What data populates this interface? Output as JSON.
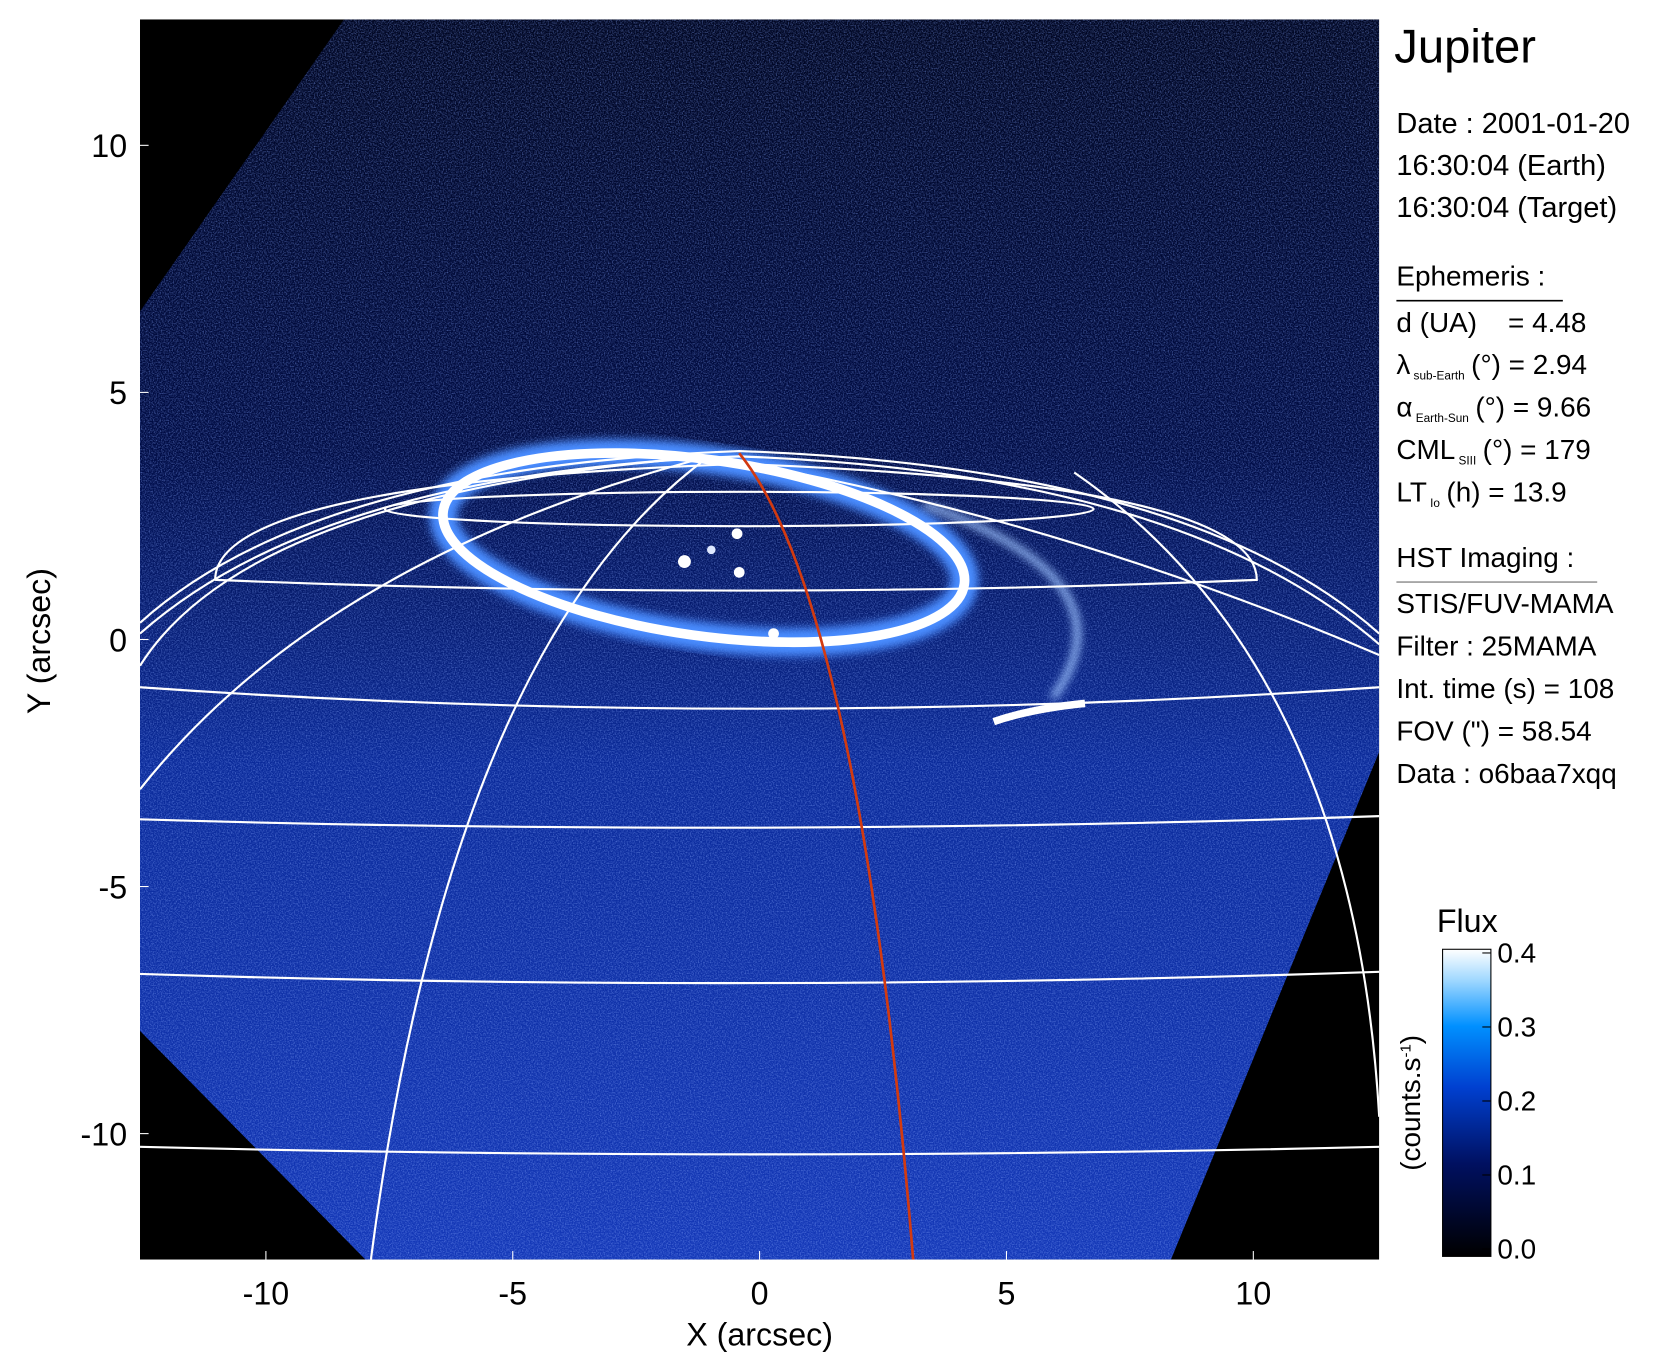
{
  "chart_data": {
    "type": "image",
    "xlabel": "X (arcsec)",
    "ylabel": "Y (arcsec)",
    "xlim": [
      -12.55,
      12.55
    ],
    "ylim": [
      -12.55,
      12.55
    ],
    "xticks": [
      -10,
      -5,
      0,
      5,
      10
    ],
    "yticks": [
      -10,
      -5,
      0,
      5,
      10
    ],
    "colorbar": {
      "title": "Flux",
      "label": {
        "text": "(counts.s",
        "sup": "-1",
        "end": ")"
      },
      "lim": [
        -0.01,
        0.405
      ],
      "ticks": [
        {
          "value": 0,
          "label": "0.0"
        },
        0.1,
        0.2,
        0.3,
        0.4
      ]
    }
  },
  "panel": {
    "title": "Jupiter",
    "info": [
      "Date : 2001-01-20",
      "16:30:04 (Earth)",
      "16:30:04 (Target)"
    ],
    "ephemeris": {
      "heading": "Ephemeris :",
      "rows": [
        {
          "symbol": "d (UA)    = 4.48"
        },
        {
          "symbol": "λ",
          "sub": "sub-Earth",
          "rest": "(°) = 2.94"
        },
        {
          "symbol": "α",
          "sub": "Earth-Sun",
          "rest": "(°) = 9.66"
        },
        {
          "symbol": "CML",
          "sub": "SIII",
          "rest": "(°) = 179"
        },
        {
          "symbol": "LT",
          "sub": "Io",
          "rest": "(h) = 13.9"
        }
      ]
    },
    "imaging": {
      "heading": "HST Imaging :",
      "rows": [
        "STIS/FUV-MAMA",
        "Filter : 25MAMA",
        "Int. time (s) = 108",
        "FOV (\") = 58.54",
        "Data : o6baa7xqq"
      ]
    }
  }
}
